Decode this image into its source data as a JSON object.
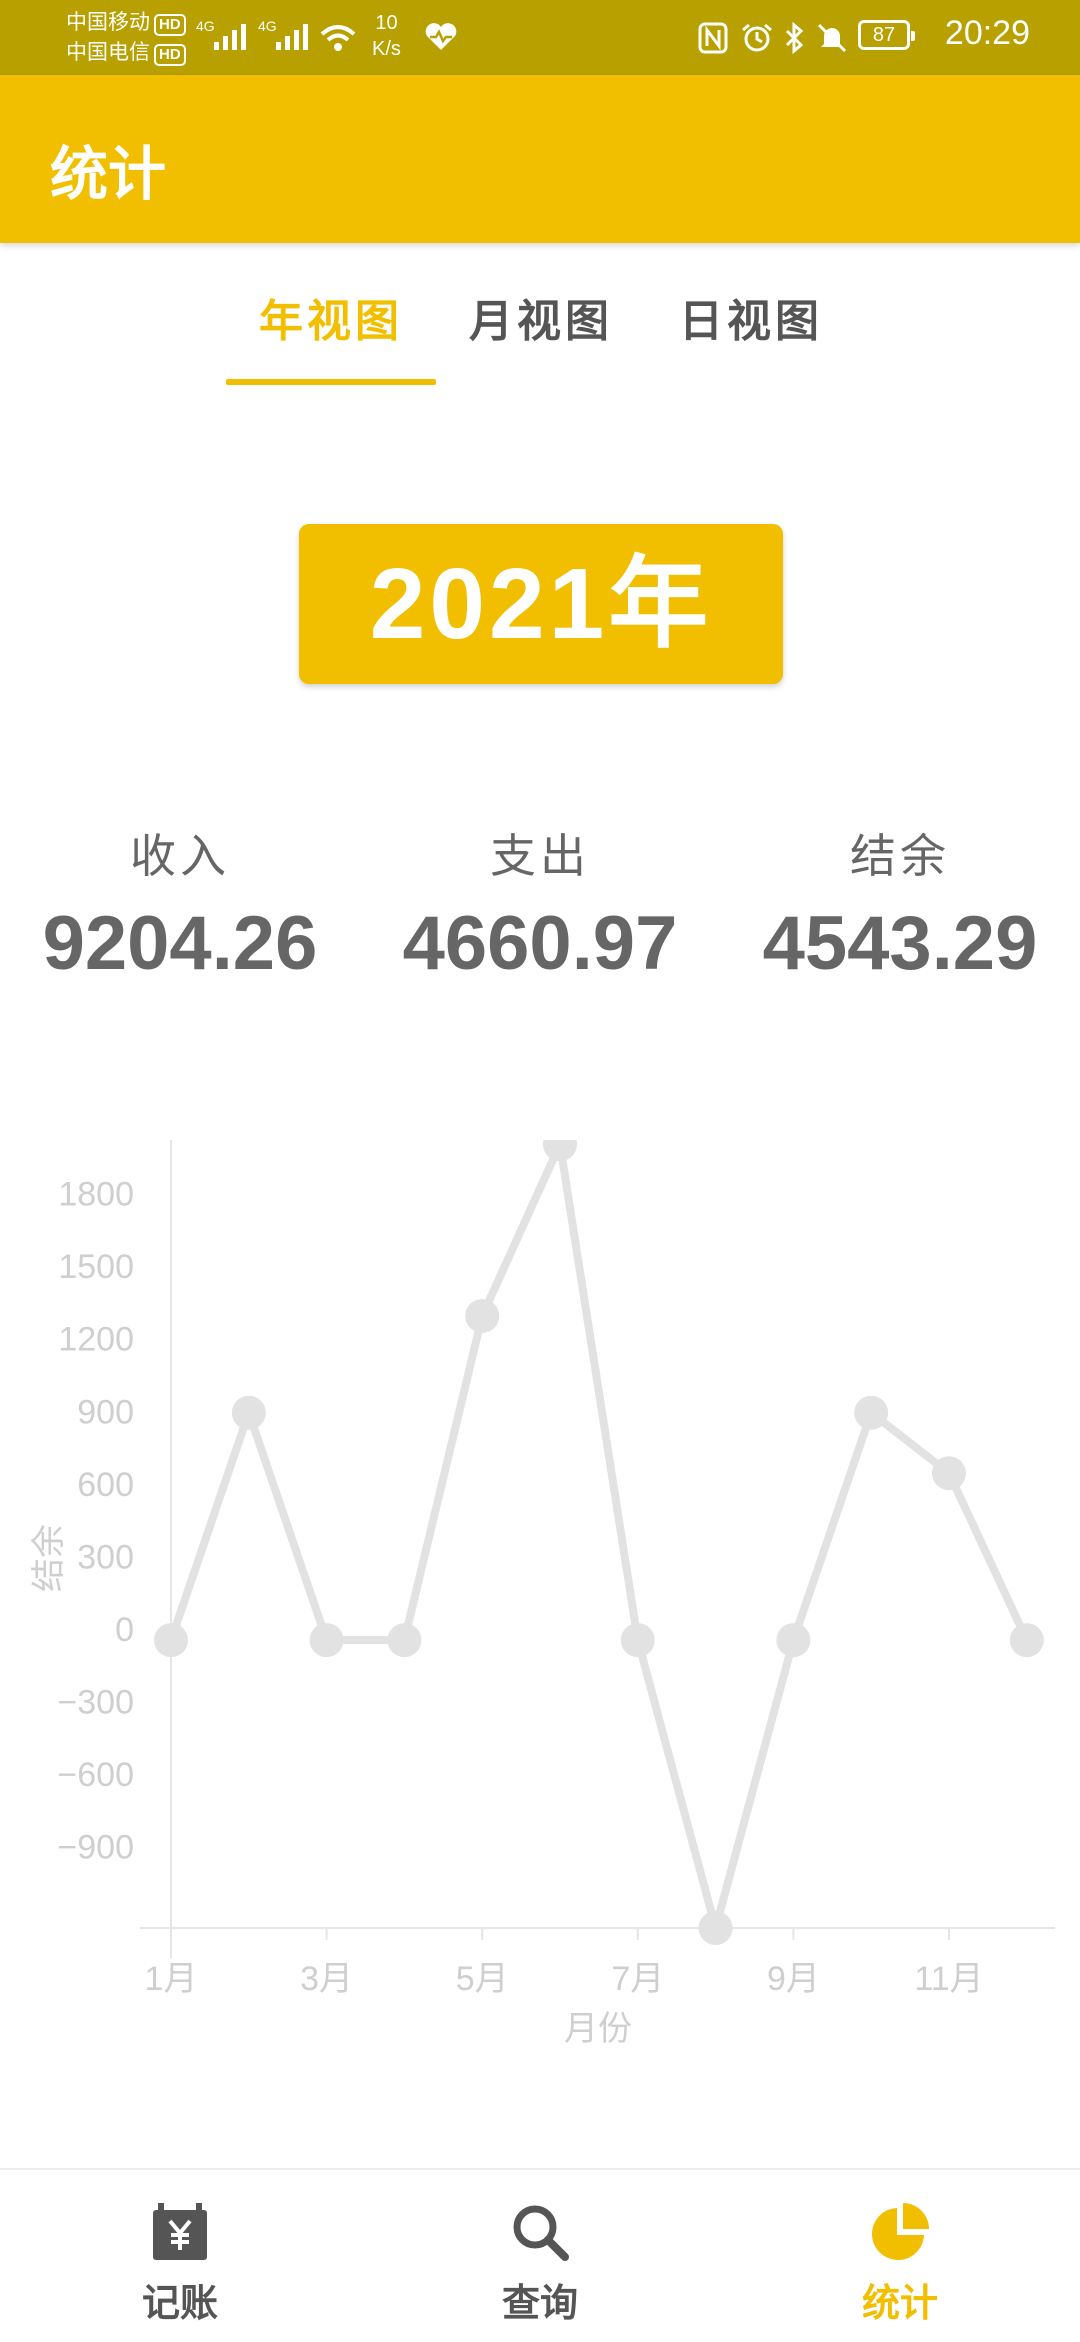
{
  "status_bar": {
    "carrier1": "中国移动",
    "carrier2": "中国电信",
    "hd": "HD",
    "signal_tag": "4G",
    "net_speed_value": "10",
    "net_speed_unit": "K/s",
    "battery": "87",
    "time": "20:29"
  },
  "app_bar": {
    "title": "统计"
  },
  "tabs": [
    {
      "label": "年视图",
      "active": true
    },
    {
      "label": "月视图",
      "active": false
    },
    {
      "label": "日视图",
      "active": false
    }
  ],
  "year_selector": {
    "label": "2021年"
  },
  "summary": {
    "income_label": "收入",
    "income_value": "9204.26",
    "expense_label": "支出",
    "expense_value": "4660.97",
    "balance_label": "结余",
    "balance_value": "4543.29"
  },
  "chart_data": {
    "type": "line",
    "xlabel": "月份",
    "ylabel": "结余",
    "x_tick_labels": [
      "1月",
      "3月",
      "5月",
      "7月",
      "9月",
      "11月"
    ],
    "y_ticks": [
      1800,
      1500,
      1200,
      900,
      600,
      300,
      0,
      -300,
      -600,
      -900
    ],
    "categories": [
      "1月",
      "2月",
      "3月",
      "4月",
      "5月",
      "6月",
      "7月",
      "8月",
      "9月",
      "10月",
      "11月",
      "12月"
    ],
    "values": [
      -50,
      890,
      -50,
      -50,
      1290,
      2000,
      -50,
      -1240,
      -50,
      890,
      640,
      -50
    ],
    "ylim": [
      -1240,
      2100
    ],
    "color": "#E2E2E2"
  },
  "bottom_nav": [
    {
      "label": "记账",
      "icon": "ledger-yuan-icon",
      "active": false
    },
    {
      "label": "查询",
      "icon": "search-icon",
      "active": false
    },
    {
      "label": "统计",
      "icon": "pie-chart-icon",
      "active": true
    }
  ],
  "colors": {
    "accent": "#F2BE00",
    "status_bar": "#B8A000",
    "text": "#666666"
  }
}
